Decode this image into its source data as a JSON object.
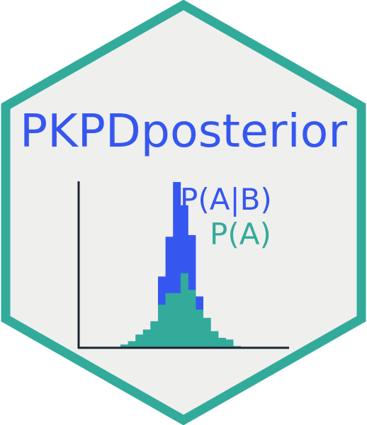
{
  "logo": {
    "title": "PKPDposterior",
    "legend_posterior": "P(A|B)",
    "legend_prior": "P(A)"
  },
  "colors": {
    "background": "#efefed",
    "border": "#32ab9b",
    "title": "#3557f0",
    "posterior": "#3557f0",
    "prior": "#32ab9b",
    "axis": "#1c2433"
  },
  "histogram": {
    "posterior": [
      0,
      0,
      0,
      0.07,
      0.16,
      0.43,
      0.67,
      1,
      0.86,
      0.68,
      0.31,
      0.18,
      0.1,
      0.06,
      0.04,
      0.01
    ],
    "prior": [
      0.02,
      0.04,
      0.08,
      0.11,
      0.16,
      0.26,
      0.33,
      0.33,
      0.45,
      0.35,
      0.23,
      0.18,
      0.1,
      0.06,
      0.05,
      0.01
    ]
  }
}
